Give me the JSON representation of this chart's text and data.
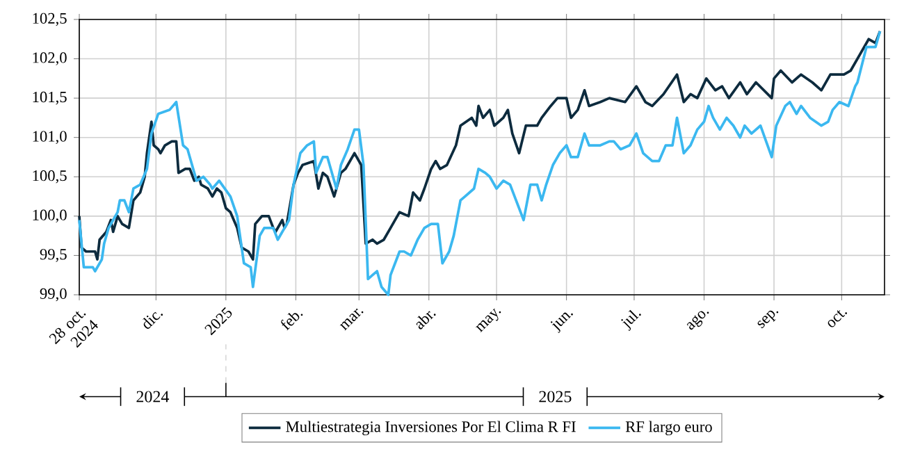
{
  "chart_data": {
    "type": "line",
    "xlim": [
      "2024-10-28",
      "2025-10-20"
    ],
    "xticks": [
      {
        "value": "2024-10-28",
        "label": "28 oct. 2024"
      },
      {
        "value": "2024-12-01",
        "label": "dic."
      },
      {
        "value": "2025-01-01",
        "label": "2025"
      },
      {
        "value": "2025-02-01",
        "label": "feb."
      },
      {
        "value": "2025-03-01",
        "label": "mar."
      },
      {
        "value": "2025-04-01",
        "label": "abr."
      },
      {
        "value": "2025-05-01",
        "label": "may."
      },
      {
        "value": "2025-06-01",
        "label": "jun."
      },
      {
        "value": "2025-07-01",
        "label": "jul."
      },
      {
        "value": "2025-08-01",
        "label": "ago."
      },
      {
        "value": "2025-09-01",
        "label": "sep."
      },
      {
        "value": "2025-10-01",
        "label": "oct."
      }
    ],
    "ylim": [
      99.0,
      102.5
    ],
    "yticks": [
      {
        "value": 99.0,
        "label": "99,0"
      },
      {
        "value": 99.5,
        "label": "99,5"
      },
      {
        "value": 100.0,
        "label": "100,0"
      },
      {
        "value": 100.5,
        "label": "100,5"
      },
      {
        "value": 101.0,
        "label": "101,0"
      },
      {
        "value": 101.5,
        "label": "101,5"
      },
      {
        "value": 102.0,
        "label": "102,0"
      },
      {
        "value": 102.5,
        "label": "102,5"
      }
    ],
    "grid": true,
    "legend": "bottom",
    "annotations": [
      "2024",
      "2025"
    ],
    "series": [
      {
        "name": "Multiestrategia Inversiones Por El Clima R FI",
        "color": "#0d2b3e",
        "x": [
          "2024-10-28",
          "2024-10-29",
          "2024-10-31",
          "2024-11-04",
          "2024-11-05",
          "2024-11-06",
          "2024-11-09",
          "2024-11-11",
          "2024-11-12",
          "2024-11-14",
          "2024-11-16",
          "2024-11-19",
          "2024-11-21",
          "2024-11-24",
          "2024-11-26",
          "2024-11-27",
          "2024-11-29",
          "2024-11-30",
          "2024-12-02",
          "2024-12-03",
          "2024-12-05",
          "2024-12-08",
          "2024-12-10",
          "2024-12-11",
          "2024-12-14",
          "2024-12-16",
          "2024-12-18",
          "2024-12-20",
          "2024-12-21",
          "2024-12-24",
          "2024-12-26",
          "2024-12-28",
          "2024-12-30",
          "2025-01-01",
          "2025-01-03",
          "2025-01-06",
          "2025-01-08",
          "2025-01-11",
          "2025-01-13",
          "2025-01-14",
          "2025-01-17",
          "2025-01-20",
          "2025-01-22",
          "2025-01-23",
          "2025-01-26",
          "2025-01-27",
          "2025-01-28",
          "2025-01-31",
          "2025-02-02",
          "2025-02-04",
          "2025-02-09",
          "2025-02-11",
          "2025-02-13",
          "2025-02-15",
          "2025-02-18",
          "2025-02-21",
          "2025-02-23",
          "2025-02-27",
          "2025-03-02",
          "2025-03-04",
          "2025-03-07",
          "2025-03-09",
          "2025-03-12",
          "2025-03-15",
          "2025-03-19",
          "2025-03-23",
          "2025-03-25",
          "2025-03-28",
          "2025-03-30",
          "2025-04-02",
          "2025-04-04",
          "2025-04-06",
          "2025-04-09",
          "2025-04-13",
          "2025-04-15",
          "2025-04-20",
          "2025-04-22",
          "2025-04-23",
          "2025-04-25",
          "2025-04-28",
          "2025-04-30",
          "2025-05-04",
          "2025-05-06",
          "2025-05-08",
          "2025-05-11",
          "2025-05-14",
          "2025-05-19",
          "2025-05-21",
          "2025-05-25",
          "2025-05-28",
          "2025-06-01",
          "2025-06-03",
          "2025-06-06",
          "2025-06-09",
          "2025-06-11",
          "2025-06-16",
          "2025-06-20",
          "2025-06-27",
          "2025-07-02",
          "2025-07-06",
          "2025-07-09",
          "2025-07-14",
          "2025-07-20",
          "2025-07-23",
          "2025-07-26",
          "2025-07-29",
          "2025-08-02",
          "2025-08-06",
          "2025-08-09",
          "2025-08-12",
          "2025-08-17",
          "2025-08-20",
          "2025-08-24",
          "2025-08-31",
          "2025-09-01",
          "2025-09-04",
          "2025-09-09",
          "2025-09-13",
          "2025-09-18",
          "2025-09-22",
          "2025-09-26",
          "2025-10-02",
          "2025-10-05",
          "2025-10-09",
          "2025-10-13",
          "2025-10-16",
          "2025-10-18"
        ],
        "values": [
          100.0,
          99.6,
          99.55,
          99.55,
          99.45,
          99.7,
          99.8,
          99.95,
          99.8,
          100.0,
          99.9,
          99.85,
          100.2,
          100.3,
          100.5,
          100.8,
          101.2,
          100.9,
          100.85,
          100.8,
          100.9,
          100.95,
          100.95,
          100.55,
          100.6,
          100.6,
          100.45,
          100.5,
          100.4,
          100.35,
          100.25,
          100.35,
          100.3,
          100.1,
          100.05,
          99.85,
          99.6,
          99.55,
          99.45,
          99.9,
          100.0,
          100.0,
          99.85,
          99.8,
          99.95,
          99.85,
          99.9,
          100.4,
          100.55,
          100.65,
          100.7,
          100.35,
          100.55,
          100.5,
          100.25,
          100.55,
          100.6,
          100.8,
          100.65,
          99.65,
          99.7,
          99.65,
          99.7,
          99.85,
          100.05,
          100.0,
          100.3,
          100.2,
          100.35,
          100.6,
          100.7,
          100.6,
          100.65,
          100.9,
          101.15,
          101.25,
          101.15,
          101.4,
          101.25,
          101.35,
          101.15,
          101.25,
          101.35,
          101.05,
          100.8,
          101.15,
          101.15,
          101.25,
          101.4,
          101.5,
          101.5,
          101.25,
          101.35,
          101.6,
          101.4,
          101.45,
          101.5,
          101.45,
          101.65,
          101.45,
          101.4,
          101.55,
          101.8,
          101.45,
          101.55,
          101.5,
          101.75,
          101.6,
          101.65,
          101.5,
          101.7,
          101.55,
          101.7,
          101.5,
          101.75,
          101.85,
          101.7,
          101.8,
          101.7,
          101.6,
          101.8,
          101.8,
          101.85,
          102.05,
          102.25,
          102.2,
          102.35
        ]
      },
      {
        "name": "RF largo euro",
        "color": "#3bb8f0",
        "x": [
          "2024-10-28",
          "2024-10-30",
          "2024-11-03",
          "2024-11-04",
          "2024-11-07",
          "2024-11-08",
          "2024-11-10",
          "2024-11-12",
          "2024-11-14",
          "2024-11-15",
          "2024-11-17",
          "2024-11-19",
          "2024-11-21",
          "2024-11-24",
          "2024-11-27",
          "2024-11-29",
          "2024-12-02",
          "2024-12-07",
          "2024-12-10",
          "2024-12-13",
          "2024-12-15",
          "2024-12-19",
          "2024-12-22",
          "2024-12-25",
          "2024-12-26",
          "2024-12-29",
          "2025-01-03",
          "2025-01-06",
          "2025-01-09",
          "2025-01-12",
          "2025-01-13",
          "2025-01-16",
          "2025-01-18",
          "2025-01-22",
          "2025-01-24",
          "2025-01-27",
          "2025-01-29",
          "2025-01-31",
          "2025-02-03",
          "2025-02-06",
          "2025-02-09",
          "2025-02-10",
          "2025-02-13",
          "2025-02-15",
          "2025-02-19",
          "2025-02-21",
          "2025-02-24",
          "2025-02-27",
          "2025-03-01",
          "2025-03-03",
          "2025-03-05",
          "2025-03-07",
          "2025-03-09",
          "2025-03-11",
          "2025-03-14",
          "2025-03-15",
          "2025-03-19",
          "2025-03-21",
          "2025-03-24",
          "2025-03-27",
          "2025-03-30",
          "2025-04-02",
          "2025-04-05",
          "2025-04-07",
          "2025-04-10",
          "2025-04-12",
          "2025-04-15",
          "2025-04-17",
          "2025-04-21",
          "2025-04-23",
          "2025-04-26",
          "2025-04-28",
          "2025-05-01",
          "2025-05-04",
          "2025-05-07",
          "2025-05-09",
          "2025-05-13",
          "2025-05-16",
          "2025-05-19",
          "2025-05-21",
          "2025-05-23",
          "2025-05-26",
          "2025-05-29",
          "2025-06-01",
          "2025-06-03",
          "2025-06-06",
          "2025-06-09",
          "2025-06-11",
          "2025-06-16",
          "2025-06-20",
          "2025-06-22",
          "2025-06-25",
          "2025-06-29",
          "2025-07-02",
          "2025-07-05",
          "2025-07-09",
          "2025-07-12",
          "2025-07-15",
          "2025-07-18",
          "2025-07-20",
          "2025-07-23",
          "2025-07-26",
          "2025-07-29",
          "2025-08-01",
          "2025-08-03",
          "2025-08-05",
          "2025-08-08",
          "2025-08-11",
          "2025-08-14",
          "2025-08-17",
          "2025-08-19",
          "2025-08-22",
          "2025-08-26",
          "2025-08-31",
          "2025-09-02",
          "2025-09-06",
          "2025-09-08",
          "2025-09-11",
          "2025-09-13",
          "2025-09-17",
          "2025-09-22",
          "2025-09-25",
          "2025-09-27",
          "2025-09-30",
          "2025-10-04",
          "2025-10-07",
          "2025-10-08",
          "2025-10-12",
          "2025-10-16",
          "2025-10-18"
        ],
        "values": [
          99.95,
          99.35,
          99.35,
          99.3,
          99.45,
          99.65,
          99.85,
          99.95,
          100.05,
          100.2,
          100.2,
          100.05,
          100.35,
          100.4,
          100.6,
          101.05,
          101.3,
          101.35,
          101.45,
          100.9,
          100.85,
          100.45,
          100.5,
          100.4,
          100.35,
          100.45,
          100.25,
          100.0,
          99.4,
          99.35,
          99.1,
          99.75,
          99.85,
          99.85,
          99.7,
          99.85,
          99.95,
          100.4,
          100.8,
          100.9,
          100.95,
          100.55,
          100.75,
          100.75,
          100.35,
          100.65,
          100.85,
          101.1,
          101.1,
          100.65,
          99.2,
          99.25,
          99.3,
          99.1,
          99.0,
          99.25,
          99.55,
          99.55,
          99.5,
          99.7,
          99.85,
          99.9,
          99.9,
          99.4,
          99.55,
          99.75,
          100.2,
          100.25,
          100.35,
          100.6,
          100.55,
          100.5,
          100.35,
          100.45,
          100.4,
          100.25,
          99.95,
          100.4,
          100.4,
          100.2,
          100.4,
          100.65,
          100.8,
          100.9,
          100.75,
          100.75,
          101.05,
          100.9,
          100.9,
          100.95,
          100.95,
          100.85,
          100.9,
          101.05,
          100.8,
          100.7,
          100.7,
          100.9,
          100.9,
          101.25,
          100.8,
          100.9,
          101.1,
          101.2,
          101.4,
          101.25,
          101.1,
          101.25,
          101.15,
          101.0,
          101.15,
          101.05,
          101.15,
          100.75,
          101.15,
          101.4,
          101.45,
          101.3,
          101.4,
          101.25,
          101.15,
          101.2,
          101.35,
          101.45,
          101.4,
          101.65,
          101.7,
          102.15,
          102.15,
          102.35
        ]
      }
    ]
  }
}
